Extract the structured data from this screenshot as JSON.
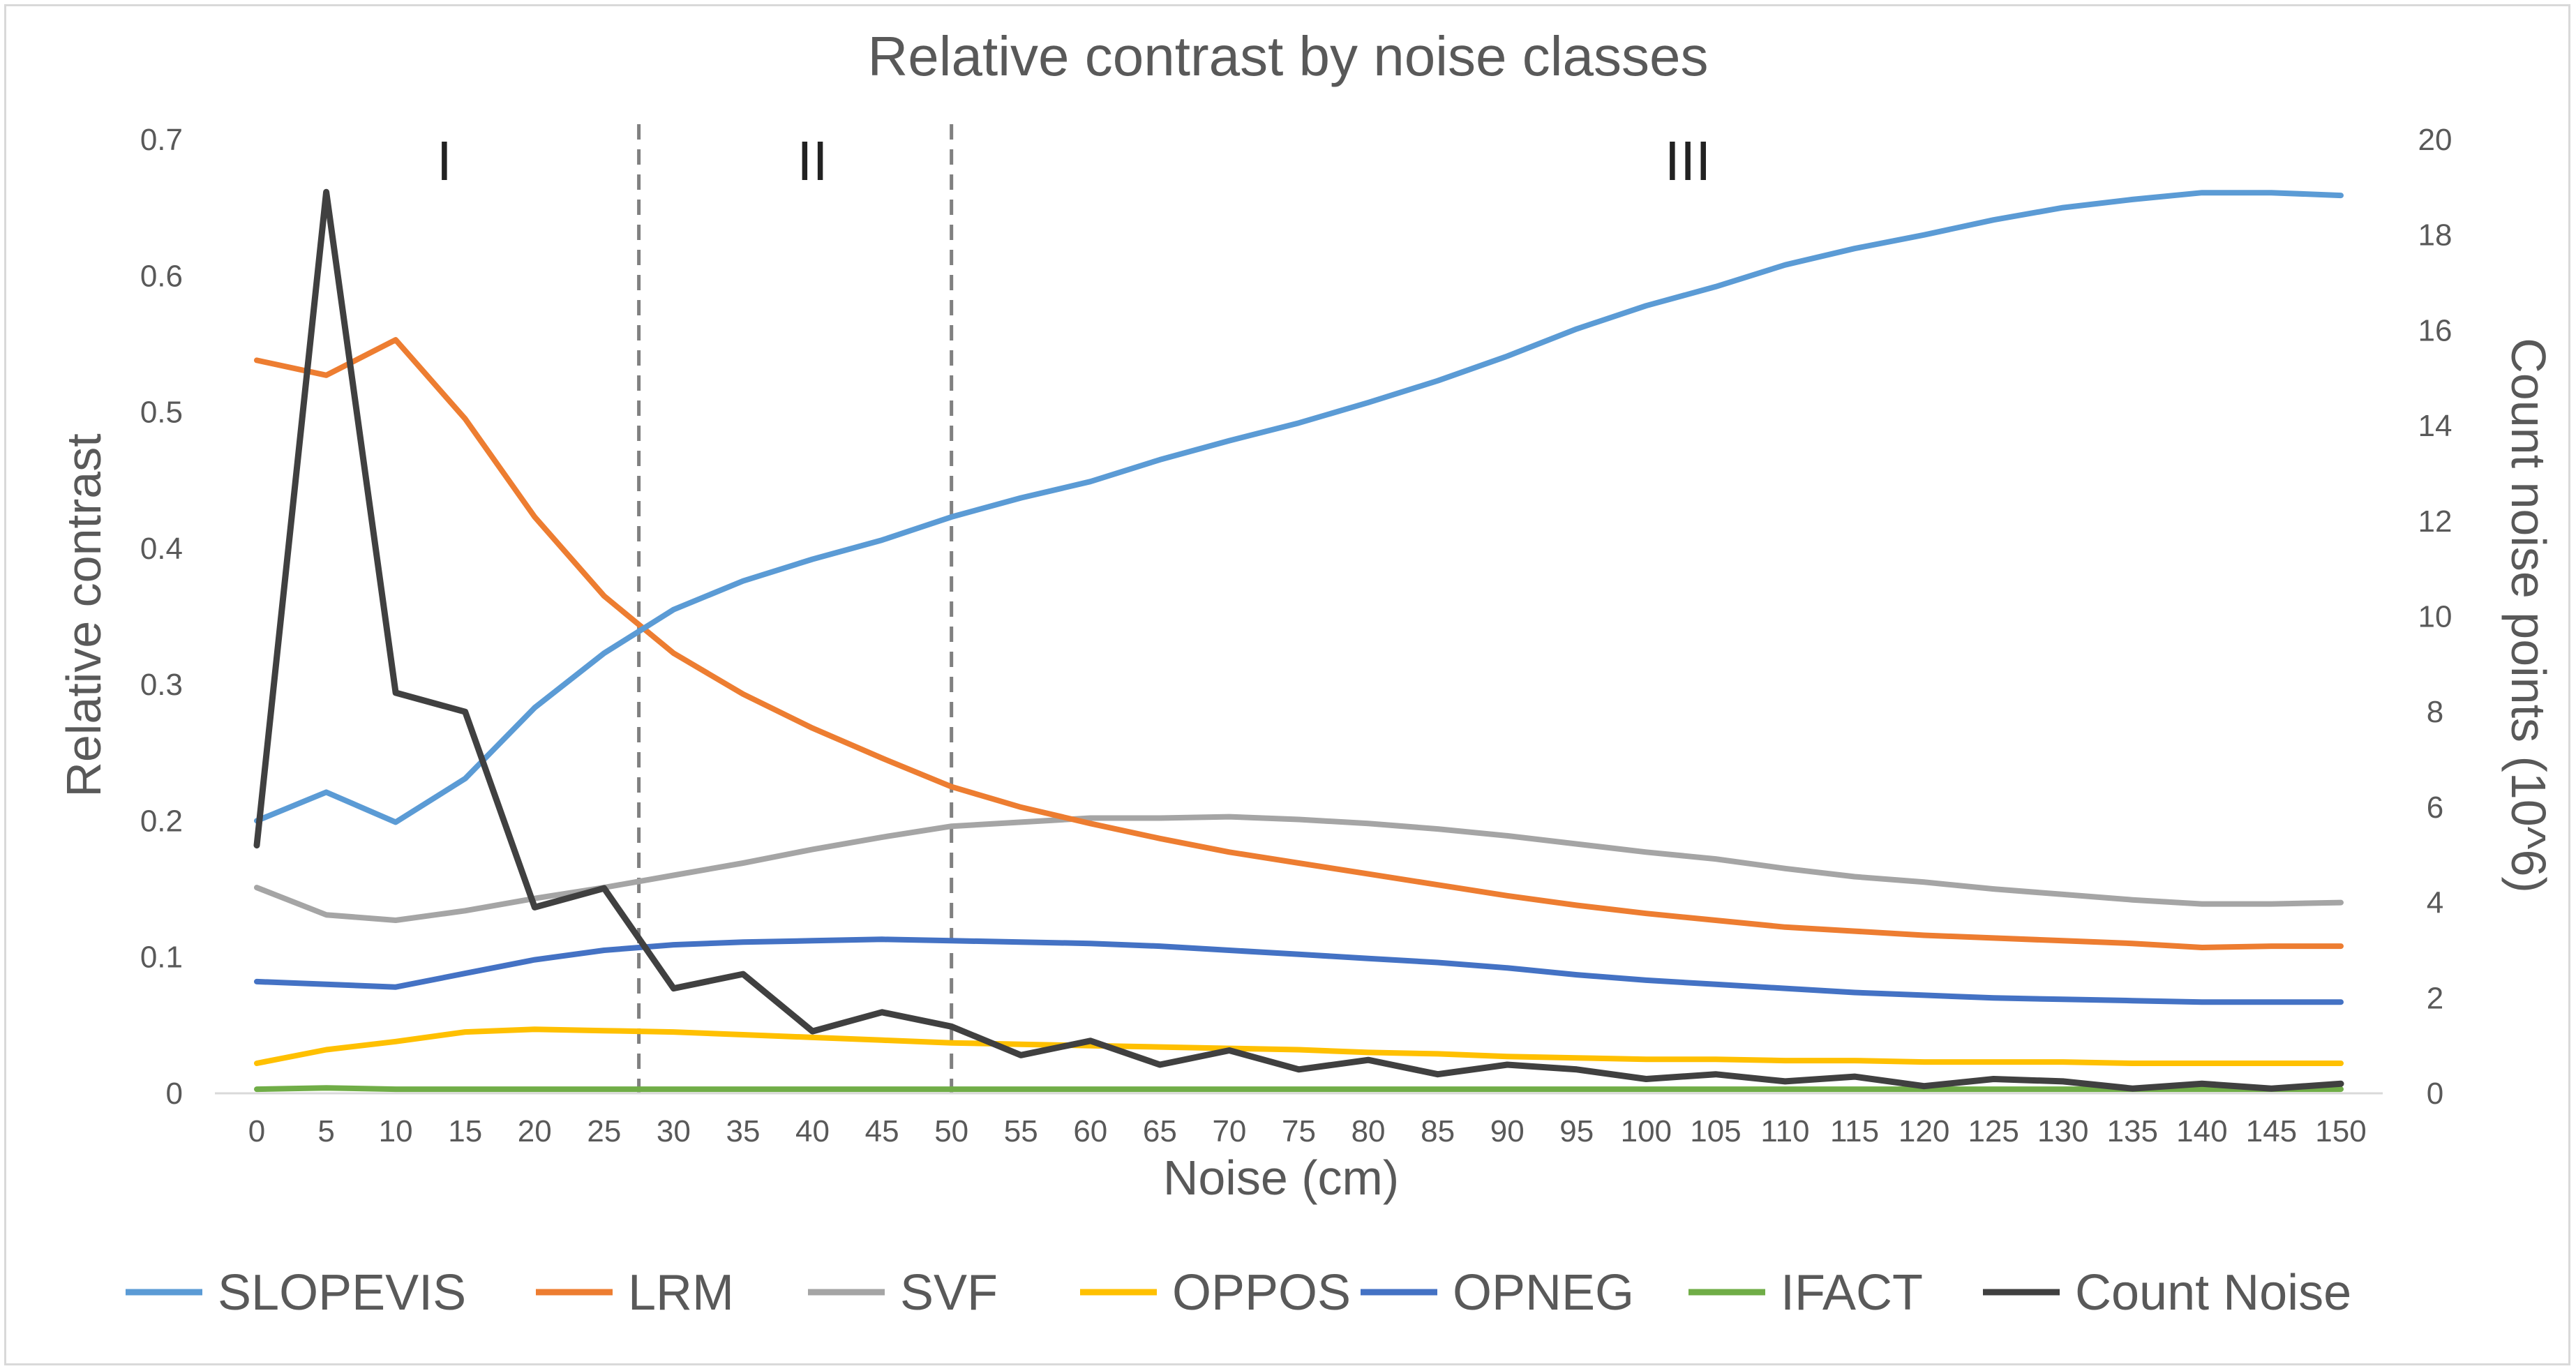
{
  "chart_data": {
    "type": "line",
    "title": "Relative contrast by noise classes",
    "xlabel": "Noise (cm)",
    "ylabel": "Relative contrast",
    "y2label": "Count noise points (10^6)",
    "x": [
      0,
      5,
      10,
      15,
      20,
      25,
      30,
      35,
      40,
      45,
      50,
      55,
      60,
      65,
      70,
      75,
      80,
      85,
      90,
      95,
      100,
      105,
      110,
      115,
      120,
      125,
      130,
      135,
      140,
      145,
      150
    ],
    "x_tick_labels": [
      "0",
      "5",
      "10",
      "15",
      "20",
      "25",
      "30",
      "35",
      "40",
      "45",
      "50",
      "55",
      "60",
      "65",
      "70",
      "75",
      "80",
      "85",
      "90",
      "95",
      "100",
      "105",
      "110",
      "115",
      "120",
      "125",
      "130",
      "135",
      "140",
      "145",
      "150"
    ],
    "ylim": [
      0,
      0.7
    ],
    "y_ticks": [
      "0",
      "0.1",
      "0.2",
      "0.3",
      "0.4",
      "0.5",
      "0.6",
      "0.7"
    ],
    "y2lim": [
      0,
      20
    ],
    "y2_ticks": [
      "0",
      "2",
      "4",
      "6",
      "8",
      "10",
      "12",
      "14",
      "16",
      "18",
      "20"
    ],
    "grid": false,
    "legend_position": "bottom",
    "zones": {
      "boundaries": [
        27.5,
        50
      ],
      "labels": [
        "I",
        "II",
        "III"
      ],
      "label_x": [
        13.5,
        40,
        103
      ]
    },
    "series": [
      {
        "name": "SLOPEVIS",
        "axis": "left",
        "color": "#5b9bd5",
        "values": [
          0.2,
          0.221,
          0.199,
          0.231,
          0.283,
          0.323,
          0.355,
          0.376,
          0.392,
          0.406,
          0.423,
          0.437,
          0.449,
          0.465,
          0.479,
          0.492,
          0.507,
          0.523,
          0.541,
          0.561,
          0.578,
          0.592,
          0.608,
          0.62,
          0.63,
          0.641,
          0.65,
          0.656,
          0.661,
          0.661,
          0.659
        ]
      },
      {
        "name": "LRM",
        "axis": "left",
        "color": "#ed7d31",
        "values": [
          0.538,
          0.527,
          0.553,
          0.495,
          0.423,
          0.365,
          0.323,
          0.293,
          0.268,
          0.246,
          0.225,
          0.21,
          0.198,
          0.187,
          0.177,
          0.169,
          0.161,
          0.153,
          0.145,
          0.138,
          0.132,
          0.127,
          0.122,
          0.119,
          0.116,
          0.114,
          0.112,
          0.11,
          0.107,
          0.108,
          0.108
        ]
      },
      {
        "name": "SVF",
        "axis": "left",
        "color": "#a5a5a5",
        "values": [
          0.151,
          0.131,
          0.127,
          0.134,
          0.143,
          0.151,
          0.16,
          0.169,
          0.179,
          0.188,
          0.196,
          0.199,
          0.202,
          0.202,
          0.203,
          0.201,
          0.198,
          0.194,
          0.189,
          0.183,
          0.177,
          0.172,
          0.165,
          0.159,
          0.155,
          0.15,
          0.146,
          0.142,
          0.139,
          0.139,
          0.14
        ]
      },
      {
        "name": "OPPOS",
        "axis": "left",
        "color": "#ffc000",
        "values": [
          0.022,
          0.032,
          0.038,
          0.045,
          0.047,
          0.046,
          0.045,
          0.043,
          0.041,
          0.039,
          0.037,
          0.036,
          0.035,
          0.034,
          0.033,
          0.032,
          0.03,
          0.029,
          0.027,
          0.026,
          0.025,
          0.025,
          0.024,
          0.024,
          0.023,
          0.023,
          0.023,
          0.022,
          0.022,
          0.022,
          0.022
        ]
      },
      {
        "name": "OPNEG",
        "axis": "left",
        "color": "#4472c4",
        "values": [
          0.082,
          0.08,
          0.078,
          0.088,
          0.098,
          0.105,
          0.109,
          0.111,
          0.112,
          0.113,
          0.112,
          0.111,
          0.11,
          0.108,
          0.105,
          0.102,
          0.099,
          0.096,
          0.092,
          0.087,
          0.083,
          0.08,
          0.077,
          0.074,
          0.072,
          0.07,
          0.069,
          0.068,
          0.067,
          0.067,
          0.067
        ]
      },
      {
        "name": "IFACT",
        "axis": "left",
        "color": "#70ad47",
        "values": [
          0.003,
          0.004,
          0.003,
          0.003,
          0.003,
          0.003,
          0.003,
          0.003,
          0.003,
          0.003,
          0.003,
          0.003,
          0.003,
          0.003,
          0.003,
          0.003,
          0.003,
          0.003,
          0.003,
          0.003,
          0.003,
          0.003,
          0.003,
          0.003,
          0.003,
          0.003,
          0.003,
          0.003,
          0.003,
          0.003,
          0.003
        ]
      },
      {
        "name": "Count Noise",
        "axis": "right",
        "color": "#404040",
        "values": [
          5.2,
          18.9,
          8.4,
          8.0,
          3.9,
          4.3,
          2.2,
          2.5,
          1.3,
          1.7,
          1.4,
          0.8,
          1.1,
          0.6,
          0.9,
          0.5,
          0.7,
          0.4,
          0.6,
          0.5,
          0.3,
          0.4,
          0.25,
          0.35,
          0.15,
          0.3,
          0.25,
          0.1,
          0.2,
          0.1,
          0.2
        ]
      }
    ]
  }
}
